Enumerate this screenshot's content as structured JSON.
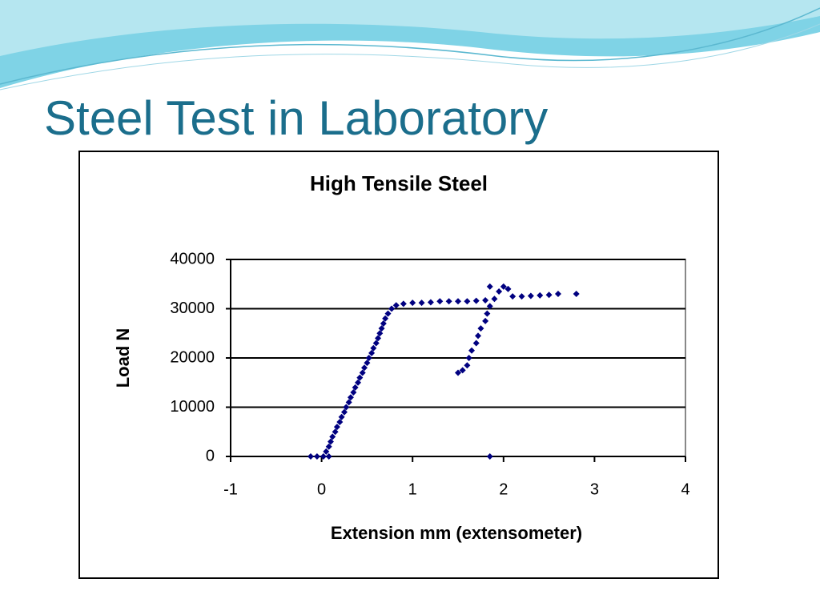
{
  "slide_title": "Steel Test in Laboratory",
  "chart_data": {
    "type": "scatter",
    "title": "High Tensile Steel",
    "xlabel": "Extension mm (extensometer)",
    "ylabel": "Load N",
    "x": [
      -0.12,
      -0.05,
      0.02,
      0.08,
      0.05,
      0.08,
      0.1,
      0.12,
      0.15,
      0.17,
      0.2,
      0.22,
      0.25,
      0.27,
      0.3,
      0.32,
      0.35,
      0.37,
      0.4,
      0.42,
      0.45,
      0.47,
      0.5,
      0.52,
      0.55,
      0.57,
      0.6,
      0.62,
      0.64,
      0.66,
      0.68,
      0.7,
      0.73,
      0.77,
      0.82,
      0.9,
      1.0,
      1.1,
      1.2,
      1.3,
      1.4,
      1.5,
      1.6,
      1.7,
      1.8,
      1.5,
      1.55,
      1.6,
      1.62,
      1.65,
      1.7,
      1.72,
      1.75,
      1.8,
      1.82,
      1.85,
      1.9,
      1.95,
      2.0,
      1.85,
      2.05,
      2.1,
      2.2,
      2.3,
      2.4,
      2.5,
      2.6,
      2.8,
      1.85
    ],
    "values": [
      0,
      0,
      0,
      0,
      1000,
      2000,
      3000,
      4000,
      5000,
      6000,
      7000,
      8000,
      9000,
      10000,
      11000,
      12000,
      13000,
      14000,
      15000,
      16000,
      17000,
      18000,
      19000,
      20000,
      21000,
      22000,
      23000,
      24000,
      25000,
      26000,
      27000,
      28000,
      29000,
      30000,
      30700,
      31000,
      31200,
      31200,
      31300,
      31500,
      31500,
      31500,
      31500,
      31600,
      31700,
      17000,
      17500,
      18500,
      20000,
      21500,
      23000,
      24500,
      26000,
      27500,
      29000,
      30500,
      32000,
      33500,
      34500,
      34500,
      34000,
      32500,
      32500,
      32600,
      32700,
      32800,
      33000,
      33000,
      0
    ],
    "color": "#000080",
    "xlim": [
      -1,
      4
    ],
    "xticks": [
      -1,
      0,
      1,
      2,
      3,
      4
    ],
    "ylim": [
      0,
      40000
    ],
    "yticks": [
      0,
      10000,
      20000,
      30000,
      40000
    ],
    "grid": true
  }
}
